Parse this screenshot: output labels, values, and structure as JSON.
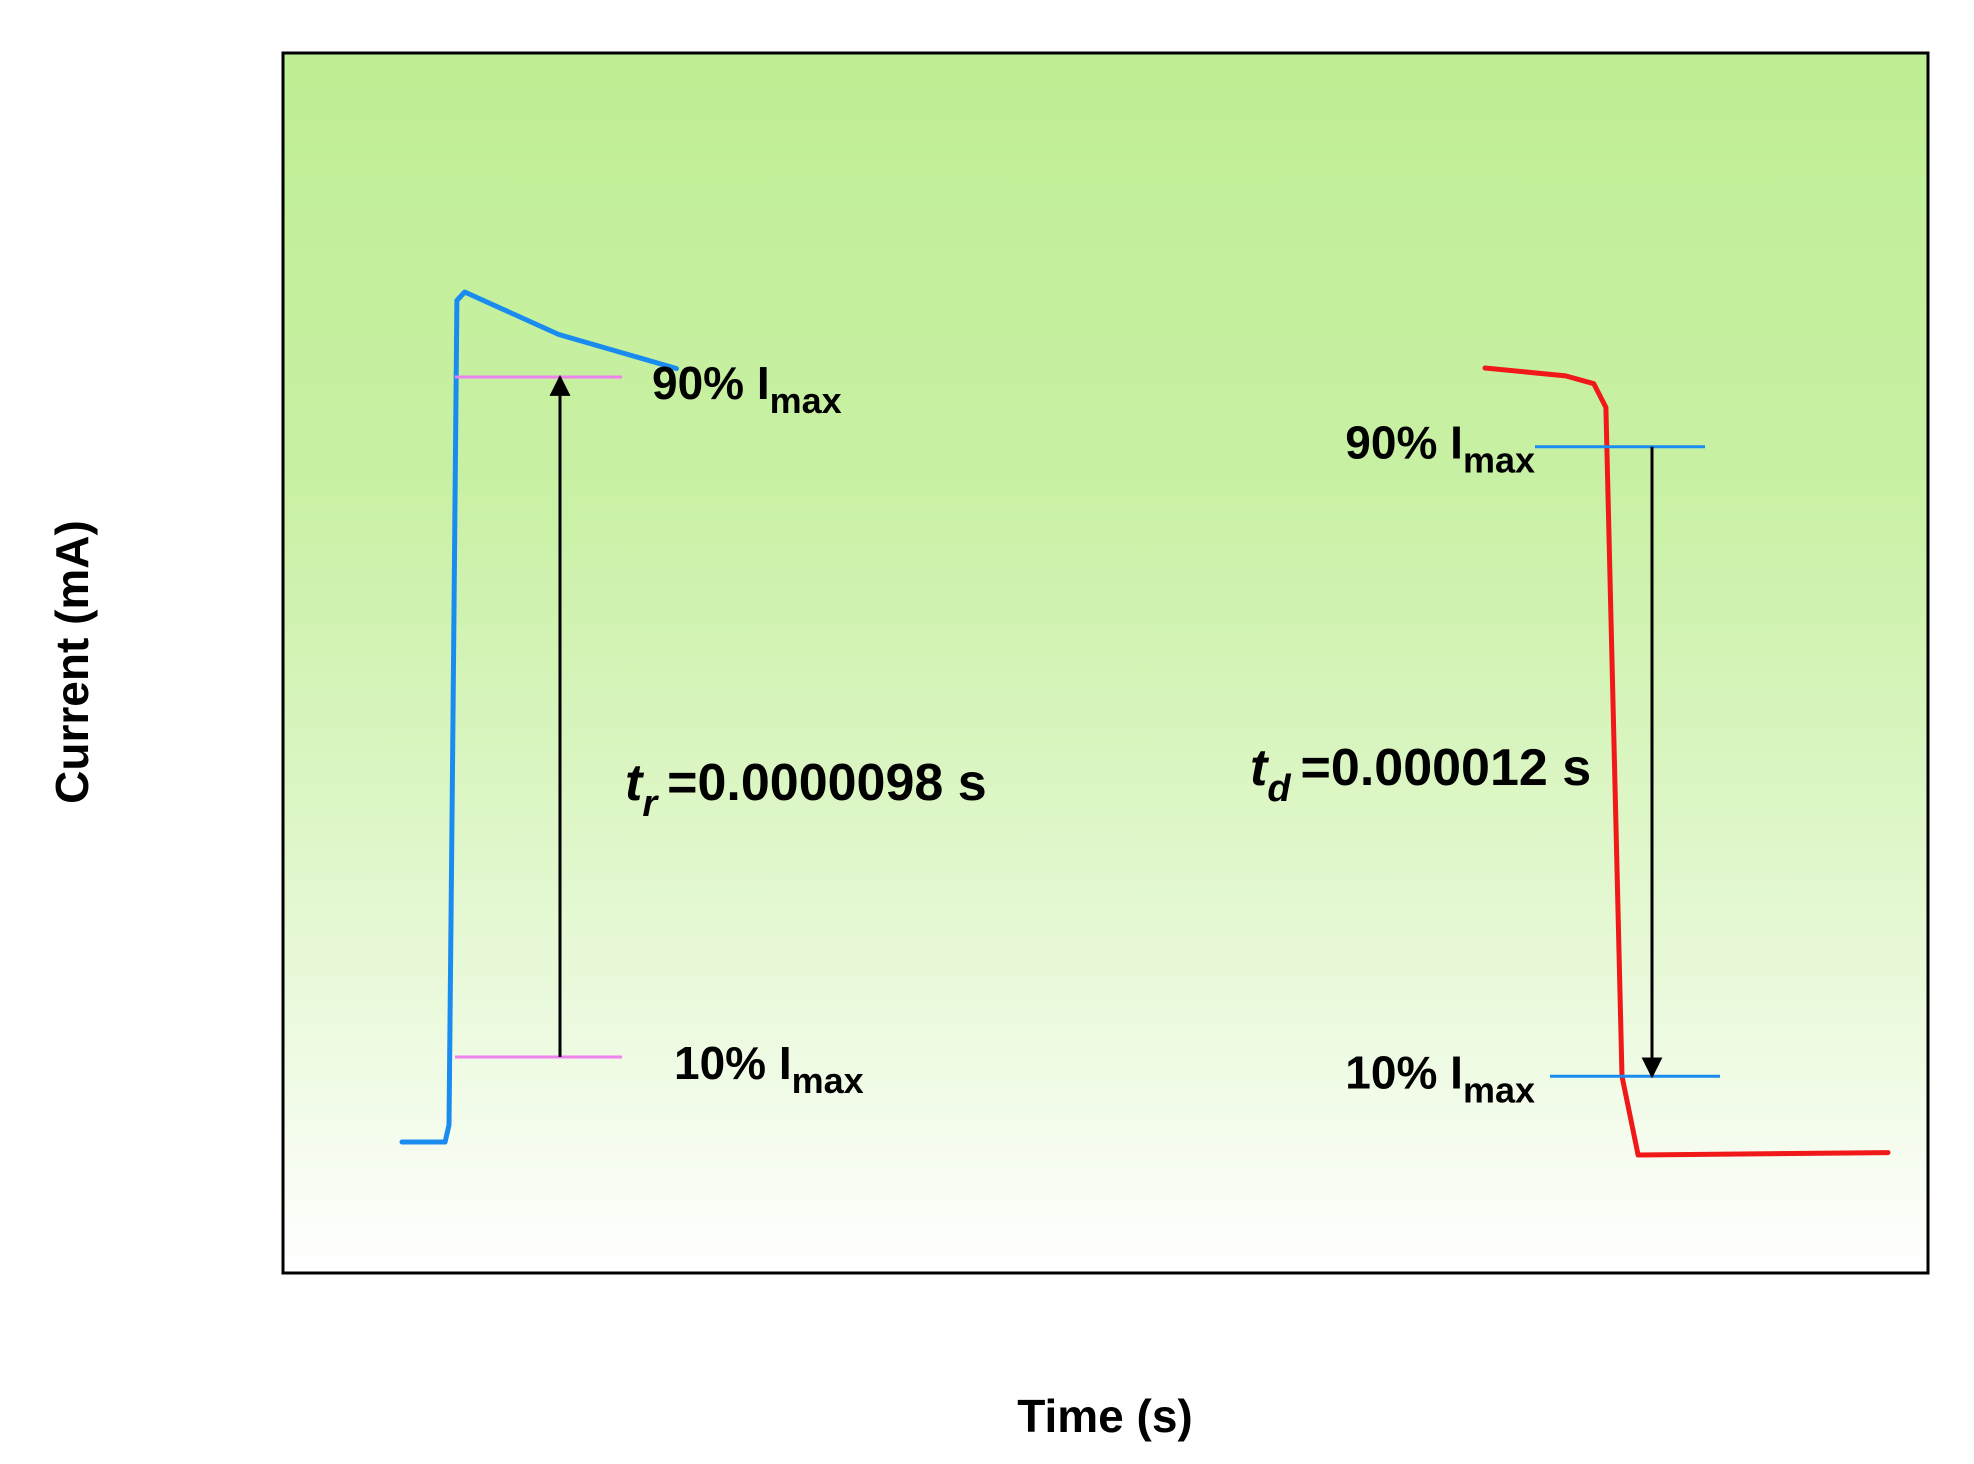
{
  "chart_data": {
    "type": "line",
    "title": "",
    "xlabel": "Time (s)",
    "ylabel": "Current (mA)",
    "grid": false,
    "legend": "none",
    "x_ticks_shown": false,
    "y_ticks_shown": false,
    "colors": {
      "background_top": "#bfee94",
      "background_bottom": "#ffffff",
      "rise_curve": "#1a8cf0",
      "decay_curve": "#f01818",
      "rise_markers": "#ee82ee",
      "decay_markers": "#1a8cf0",
      "arrows": "#000000",
      "frame": "#000000"
    },
    "panels": [
      {
        "id": "rise",
        "series_color": "#1a8cf0",
        "series": {
          "x": [
            0.0,
            0.11,
            0.12,
            0.13,
            0.14,
            0.16,
            0.4,
            0.7
          ],
          "y": [
            0.0,
            0.0,
            0.02,
            0.5,
            0.99,
            1.0,
            0.95,
            0.91
          ]
        },
        "markers": [
          {
            "level": 0.1,
            "label_main": "10% I",
            "label_sub": "max"
          },
          {
            "level": 0.9,
            "label_main": "90% I",
            "label_sub": "max"
          }
        ],
        "arrow_direction": "up",
        "annotation": {
          "symbol": "t",
          "subscript": "r",
          "value_text": "=0.0000098 s"
        }
      },
      {
        "id": "decay",
        "series_color": "#f01818",
        "series": {
          "x": [
            0.0,
            0.2,
            0.27,
            0.3,
            0.34,
            0.38,
            1.0
          ],
          "y": [
            1.0,
            0.99,
            0.98,
            0.95,
            0.1,
            0.0,
            0.003
          ]
        },
        "markers": [
          {
            "level": 0.9,
            "label_main": "90% I",
            "label_sub": "max"
          },
          {
            "level": 0.1,
            "label_main": "10% I",
            "label_sub": "max"
          }
        ],
        "arrow_direction": "down",
        "annotation": {
          "symbol": "t",
          "subscript": "d",
          "value_text": "=0.000012 s"
        }
      }
    ]
  }
}
